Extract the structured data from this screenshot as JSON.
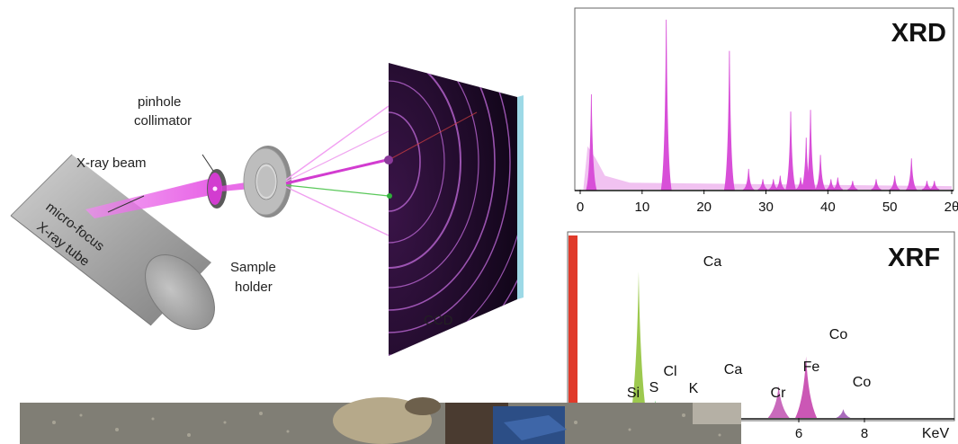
{
  "diagram": {
    "labels": {
      "tube": [
        "micro-focus",
        "X-ray tube"
      ],
      "beam": "X-ray beam",
      "collimator": [
        "pinhole",
        "collimator"
      ],
      "sample": [
        "Sample",
        "holder"
      ],
      "ccd": "CCD"
    },
    "colors": {
      "beam": "#e23de0",
      "detector": "#1b0a22",
      "ring": "#b060c8",
      "tube": "#a8a8a8"
    }
  },
  "chart_data": [
    {
      "type": "line",
      "title": "XRD",
      "xlabel": "",
      "ylabel": "",
      "xlim": [
        0,
        60
      ],
      "ylim": [
        0,
        1
      ],
      "xticks": [
        "0",
        "10",
        "20",
        "30",
        "40",
        "50",
        "2θ"
      ],
      "xtick_values": [
        0,
        10,
        20,
        30,
        40,
        50,
        60
      ],
      "color": "#d84fd8",
      "peaks": [
        {
          "x": 1.8,
          "h": 0.55
        },
        {
          "x": 13.9,
          "h": 0.98
        },
        {
          "x": 24.1,
          "h": 0.8
        },
        {
          "x": 27.2,
          "h": 0.12
        },
        {
          "x": 29.5,
          "h": 0.06
        },
        {
          "x": 31.2,
          "h": 0.06
        },
        {
          "x": 32.3,
          "h": 0.08
        },
        {
          "x": 34.0,
          "h": 0.45
        },
        {
          "x": 35.6,
          "h": 0.07
        },
        {
          "x": 36.5,
          "h": 0.3
        },
        {
          "x": 37.2,
          "h": 0.46
        },
        {
          "x": 38.8,
          "h": 0.2
        },
        {
          "x": 40.5,
          "h": 0.06
        },
        {
          "x": 41.6,
          "h": 0.07
        },
        {
          "x": 44.0,
          "h": 0.05
        },
        {
          "x": 47.8,
          "h": 0.06
        },
        {
          "x": 50.8,
          "h": 0.08
        },
        {
          "x": 53.5,
          "h": 0.18
        },
        {
          "x": 56.0,
          "h": 0.05
        },
        {
          "x": 57.2,
          "h": 0.05
        }
      ]
    },
    {
      "type": "area",
      "title": "XRF",
      "xlabel": "KeV",
      "xlim": [
        0,
        9
      ],
      "xticks": [
        "6",
        "8"
      ],
      "xtick_values": [
        6,
        8
      ],
      "peaks": [
        {
          "label": "Si",
          "x": 1.74,
          "h": 0.03,
          "color": "#9a9a9a"
        },
        {
          "label": "S",
          "x": 2.31,
          "h": 0.05,
          "color": "#c8c830"
        },
        {
          "label": "Cl",
          "x": 2.62,
          "h": 0.1,
          "color": "#d8d020"
        },
        {
          "label": "K",
          "x": 3.31,
          "h": 0.05,
          "color": "#a0c040"
        },
        {
          "label": "Ca",
          "x": 3.69,
          "h": 1.0,
          "color": "#8cc030"
        },
        {
          "label": "Ca",
          "x": 4.01,
          "h": 0.12,
          "color": "#2fae3a"
        },
        {
          "label": "Cr",
          "x": 5.41,
          "h": 0.05,
          "color": "#3aa0c0"
        },
        {
          "label": "Fe",
          "x": 6.4,
          "h": 0.22,
          "color": "#c050b0"
        },
        {
          "label": "Co",
          "x": 6.93,
          "h": 0.42,
          "color": "#c23aa8"
        },
        {
          "label": "Co",
          "x": 7.65,
          "h": 0.06,
          "color": "#9a50b0"
        }
      ]
    }
  ]
}
